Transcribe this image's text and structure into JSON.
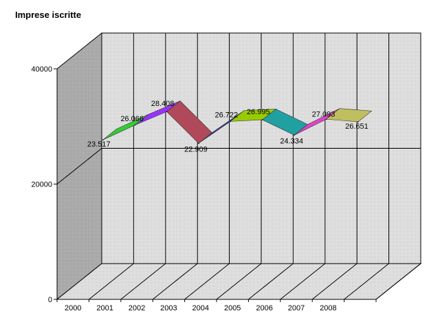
{
  "chart_data": {
    "type": "line",
    "title": "Imprese iscritte",
    "xlabel": "",
    "ylabel": "",
    "categories": [
      "2000",
      "2001",
      "2002",
      "2003",
      "2004",
      "2005",
      "2006",
      "2007",
      "2008"
    ],
    "values": [
      23517,
      26066,
      28408,
      22909,
      26722,
      26995,
      24334,
      27093,
      26651
    ],
    "value_labels": [
      "23.517",
      "26.066",
      "28.408",
      "22.909",
      "26.722",
      "26.995",
      "24.334",
      "27.093",
      "26.651"
    ],
    "ylim": [
      0,
      40000
    ],
    "yticks": [
      "0",
      "20000",
      "40000"
    ],
    "grid": true,
    "legend": "none",
    "style": "3d-ribbon",
    "colors": {
      "ribbon": [
        "#33cc33",
        "#9933ff",
        "#b04a5a",
        "#2a3f9f",
        "#99cc00",
        "#20a0a0",
        "#dd44cc",
        "#bfbf60"
      ],
      "wall": "#d8d8d8",
      "side_wall": "#a9a9a9",
      "floor": "#e6e6e6",
      "grid": "#000000"
    }
  }
}
